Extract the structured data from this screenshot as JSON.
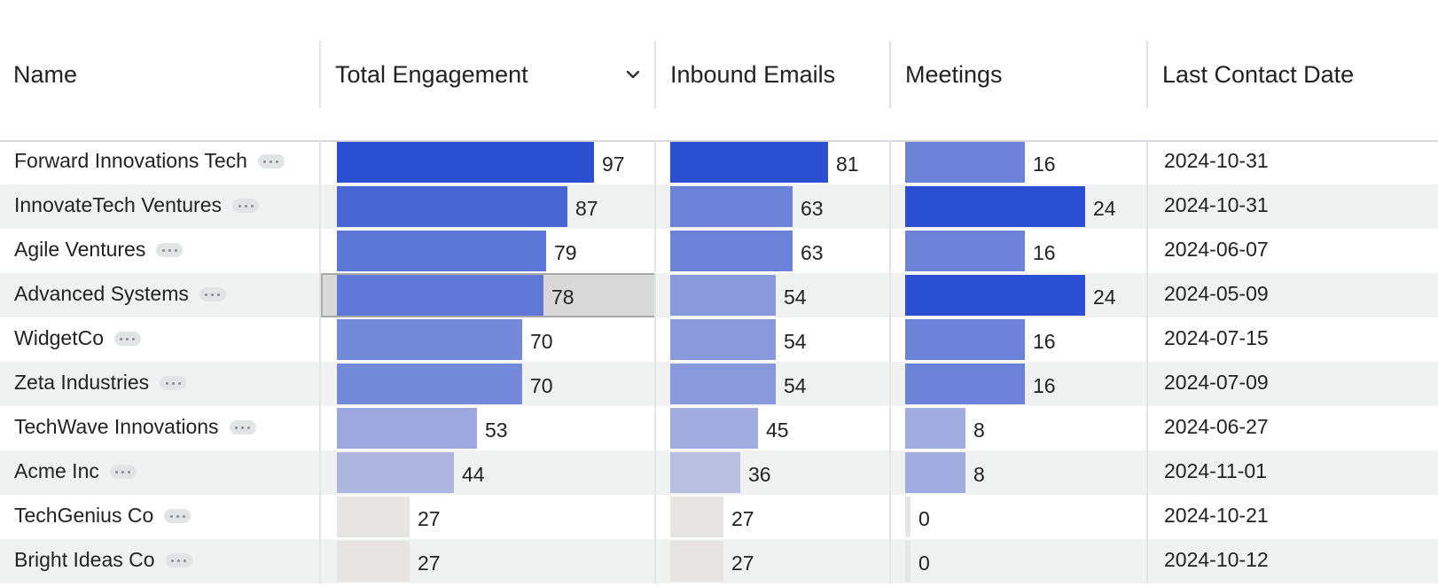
{
  "columns": {
    "name": "Name",
    "engagement": "Total Engagement",
    "emails": "Inbound Emails",
    "meetings": "Meetings",
    "last_contact": "Last Contact Date"
  },
  "sort_icon": "chevron-down-icon",
  "more_icon": "more-horizontal-icon",
  "selected_row": 3,
  "selected_column": "engagement",
  "bar_colors": {
    "darkest": "#2b4fd1",
    "empty": "#e6e5e4"
  },
  "rows": [
    {
      "name": "Forward Innovations Tech",
      "engagement": 97,
      "emails": 81,
      "meetings": 16,
      "last_contact": "2024-10-31"
    },
    {
      "name": "InnovateTech Ventures",
      "engagement": 87,
      "emails": 63,
      "meetings": 24,
      "last_contact": "2024-10-31"
    },
    {
      "name": "Agile Ventures",
      "engagement": 79,
      "emails": 63,
      "meetings": 16,
      "last_contact": "2024-06-07"
    },
    {
      "name": "Advanced Systems",
      "engagement": 78,
      "emails": 54,
      "meetings": 24,
      "last_contact": "2024-05-09"
    },
    {
      "name": "WidgetCo",
      "engagement": 70,
      "emails": 54,
      "meetings": 16,
      "last_contact": "2024-07-15"
    },
    {
      "name": "Zeta Industries",
      "engagement": 70,
      "emails": 54,
      "meetings": 16,
      "last_contact": "2024-07-09"
    },
    {
      "name": "TechWave Innovations",
      "engagement": 53,
      "emails": 45,
      "meetings": 8,
      "last_contact": "2024-06-27"
    },
    {
      "name": "Acme Inc",
      "engagement": 44,
      "emails": 36,
      "meetings": 8,
      "last_contact": "2024-11-01"
    },
    {
      "name": "TechGenius Co",
      "engagement": 27,
      "emails": 27,
      "meetings": 0,
      "last_contact": "2024-10-21"
    },
    {
      "name": "Bright Ideas Co",
      "engagement": 27,
      "emails": 27,
      "meetings": 0,
      "last_contact": "2024-10-12"
    }
  ]
}
